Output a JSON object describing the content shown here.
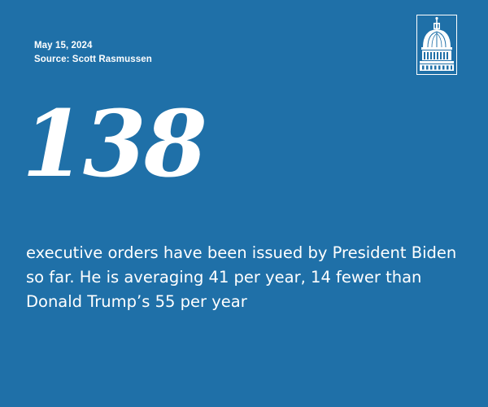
{
  "meta": {
    "date": "May 15, 2024",
    "source": "Source: Scott Rasmussen"
  },
  "headline": {
    "number": "138"
  },
  "body": {
    "text": "executive orders have been issued by President Biden so far. He is averaging 41 per year, 14 fewer than Donald Trump’s 55 per year"
  },
  "logo": {
    "icon": "capitol-dome-icon"
  },
  "colors": {
    "background": "#1f70a8",
    "text": "#ffffff"
  }
}
